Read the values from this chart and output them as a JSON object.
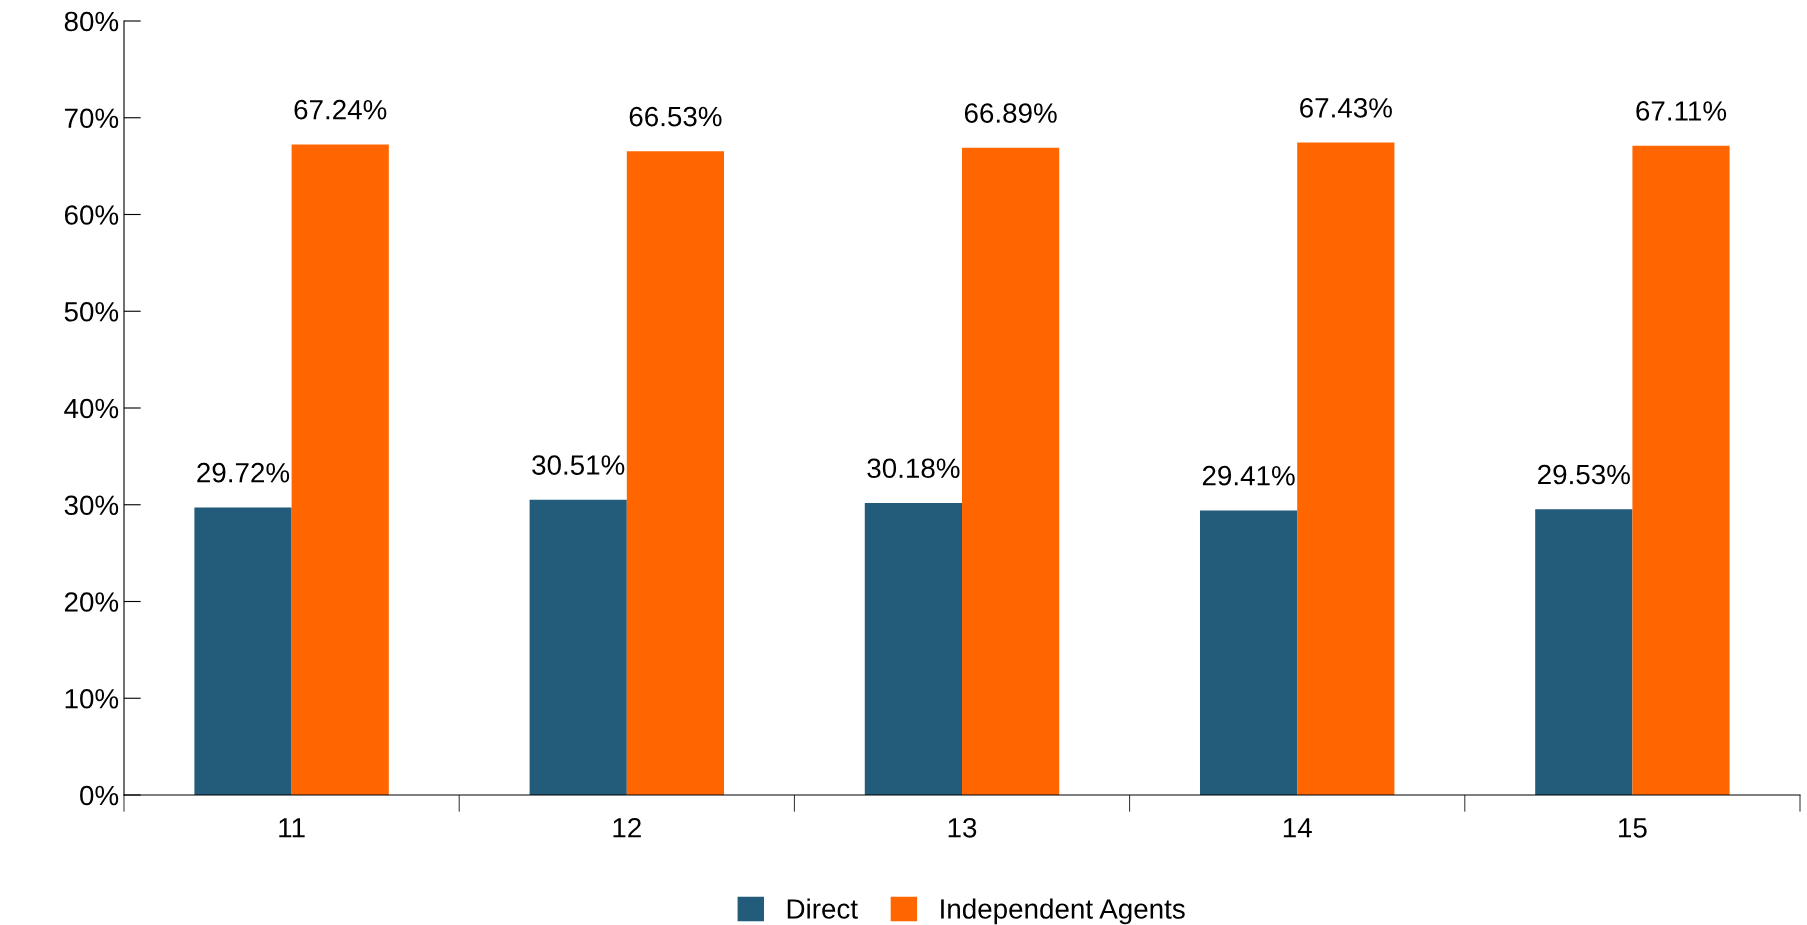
{
  "chart_data": {
    "type": "bar",
    "categories": [
      "11",
      "12",
      "13",
      "14",
      "15"
    ],
    "series": [
      {
        "name": "Direct",
        "color": "#235b7a",
        "values": [
          29.72,
          30.51,
          30.18,
          29.41,
          29.53
        ],
        "value_labels": [
          "29.72%",
          "30.51%",
          "30.18%",
          "29.41%",
          "29.53%"
        ]
      },
      {
        "name": "Independent Agents",
        "color": "#ff6600",
        "values": [
          67.24,
          66.53,
          66.89,
          67.43,
          67.11
        ],
        "value_labels": [
          "67.24%",
          "66.53%",
          "66.89%",
          "67.43%",
          "67.11%"
        ]
      }
    ],
    "ylim": [
      0,
      80
    ],
    "yticks": [
      {
        "value": 0,
        "label": "0%"
      },
      {
        "value": 10,
        "label": "10%"
      },
      {
        "value": 20,
        "label": "20%"
      },
      {
        "value": 30,
        "label": "30%"
      },
      {
        "value": 40,
        "label": "40%"
      },
      {
        "value": 50,
        "label": "50%"
      },
      {
        "value": 60,
        "label": "60%"
      },
      {
        "value": 70,
        "label": "70%"
      },
      {
        "value": 80,
        "label": "80%"
      }
    ],
    "grid": false,
    "legend": "bottom"
  }
}
